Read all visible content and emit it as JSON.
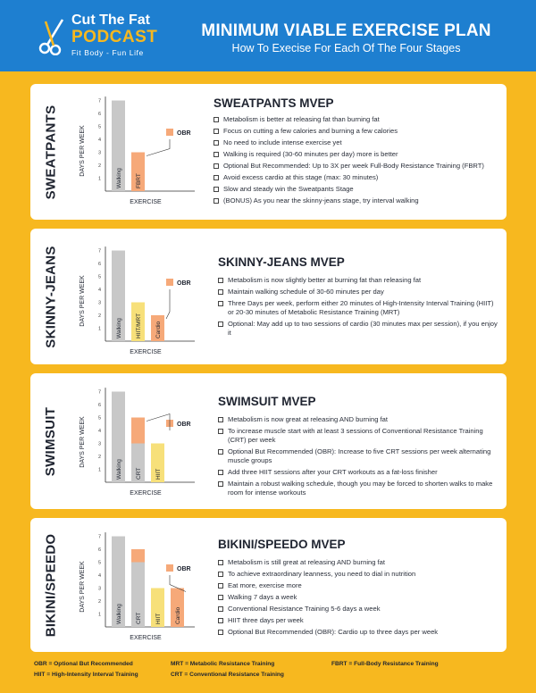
{
  "header": {
    "logo_line1": "Cut The Fat",
    "logo_line2": "PODCAST",
    "logo_tagline": "Fit Body - Fun Life",
    "title": "MINIMUM VIABLE EXERCISE PLAN",
    "subtitle": "How To Execise For Each Of The Four Stages"
  },
  "colors": {
    "header_blue": "#1e7fd0",
    "accent_yellow": "#f7b81f",
    "walking_gray": "#c8c8c8",
    "light_yellow": "#f7e07a",
    "obr_orange": "#f6a979"
  },
  "sections": [
    {
      "stage": "SWEATPANTS",
      "title": "SWEATPANTS MVEP",
      "bullets": [
        "Metabolism is better at releasing fat than burning fat",
        "Focus on cutting a few calories and burning a few calories",
        "No need to include intense exercise yet",
        "Walking is required (30-60 minutes per day) more is better",
        "Optional But Recommended: Up to 3X per week Full-Body Resistance Training (FBRT)",
        "Avoid excess cardio at this stage (max: 30 minutes)",
        "Slow and steady win the Sweatpants Stage",
        "(BONUS) As you near the skinny-jeans stage, try interval walking"
      ],
      "chart": {
        "ylabel": "DAYS PER WEEK",
        "xlabel": "EXERCISE",
        "legend": "OBR",
        "ticks": [
          "1",
          "2",
          "3",
          "4",
          "5",
          "6",
          "7"
        ],
        "bars": [
          {
            "label": "Walking",
            "base": 7,
            "obr": 0,
            "color": "gray"
          },
          {
            "label": "FBRT",
            "base": 0,
            "obr": 3,
            "color": "none"
          }
        ]
      }
    },
    {
      "stage": "SKINNY-JEANS",
      "title": "SKINNY-JEANS MVEP",
      "bullets": [
        "Metabolism is now slightly better at burning fat than releasing fat",
        "Maintain walking schedule of 30-60 minutes per day",
        "Three Days per week, perform either 20 minutes of High-Intensity Interval Training (HIIT) or 20-30 minutes of Metabolic Resistance Training (MRT)",
        "Optional: May add up to two sessions of cardio (30 minutes max per session), if you enjoy it"
      ],
      "chart": {
        "ylabel": "DAYS PER WEEK",
        "xlabel": "EXERCISE",
        "legend": "OBR",
        "ticks": [
          "1",
          "2",
          "3",
          "4",
          "5",
          "6",
          "7"
        ],
        "bars": [
          {
            "label": "Walking",
            "base": 7,
            "obr": 0,
            "color": "gray"
          },
          {
            "label": "HIIT/MRT",
            "base": 3,
            "obr": 0,
            "color": "yellow"
          },
          {
            "label": "Cardio",
            "base": 0,
            "obr": 2,
            "color": "none"
          }
        ]
      }
    },
    {
      "stage": "SWIMSUIT",
      "title": "SWIMSUIT MVEP",
      "bullets": [
        "Metabolism is now great at releasing AND burning fat",
        "To increase muscle start with at least 3 sessions of Conventional Resistance Training (CRT) per week",
        "Optional But Recommended (OBR): Increase to five CRT sessions per week alternating muscle groups",
        "Add three HIIT sessions after your CRT workouts as a fat-loss finisher",
        "Maintain a robust walking schedule, though you may be forced to shorten walks to make room for intense workouts"
      ],
      "chart": {
        "ylabel": "DAYS PER WEEK",
        "xlabel": "EXERCISE",
        "legend": "OBR",
        "ticks": [
          "1",
          "2",
          "3",
          "4",
          "5",
          "6",
          "7"
        ],
        "bars": [
          {
            "label": "Walking",
            "base": 7,
            "obr": 0,
            "color": "gray"
          },
          {
            "label": "CRT",
            "base": 3,
            "obr": 2,
            "color": "gray"
          },
          {
            "label": "HIIT",
            "base": 3,
            "obr": 0,
            "color": "yellow"
          }
        ]
      }
    },
    {
      "stage": "BIKINI/SPEEDO",
      "title": "BIKINI/SPEEDO MVEP",
      "bullets": [
        "Metabolism is still great at releasing AND burning fat",
        "To achieve extraordinary leanness, you need to dial in nutrition",
        "Eat more, exercise more",
        "Walking 7 days a week",
        "Conventional Resistance Training 5-6 days a week",
        "HIIT three days per week",
        "Optional But Recommended (OBR): Cardio up to three days per week"
      ],
      "chart": {
        "ylabel": "DAYS PER WEEK",
        "xlabel": "EXERCISE",
        "legend": "OBR",
        "ticks": [
          "1",
          "2",
          "3",
          "4",
          "5",
          "6",
          "7"
        ],
        "bars": [
          {
            "label": "Walking",
            "base": 7,
            "obr": 0,
            "color": "gray"
          },
          {
            "label": "CRT",
            "base": 5,
            "obr": 1,
            "color": "gray"
          },
          {
            "label": "HIIT",
            "base": 3,
            "obr": 0,
            "color": "yellow"
          },
          {
            "label": "Cardio",
            "base": 0,
            "obr": 3,
            "color": "none"
          }
        ]
      }
    }
  ],
  "footer": {
    "obr": "OBR = Optional But Recommended",
    "hiit": "HIIT = High-Intensity Interval Training",
    "mrt": "MRT = Metabolic Resistance Training",
    "crt": "CRT = Conventional Resistance Training",
    "fbrt": "FBRT = Full-Body Resistance Training"
  }
}
